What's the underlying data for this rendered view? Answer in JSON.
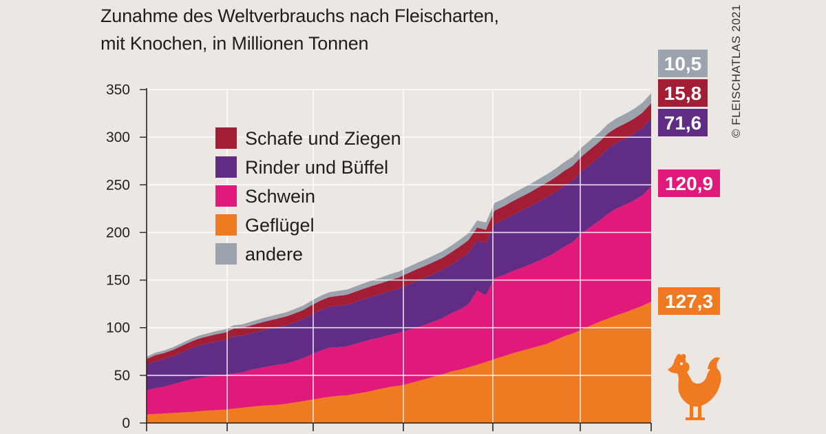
{
  "title_line1": "Zunahme des Weltverbrauchs nach Fleischarten,",
  "title_line2": "mit Knochen, in Millionen Tonnen",
  "credit": "© FLEISCHATLAS 2021",
  "icon": "chicken-icon",
  "chart_data": {
    "type": "area",
    "stacked": true,
    "ylim": [
      0,
      350
    ],
    "yticks": [
      0,
      50,
      100,
      150,
      200,
      250,
      300,
      350
    ],
    "grid": true,
    "legend_position": "top-left",
    "x": [
      0,
      1,
      2,
      3,
      4,
      5,
      6,
      7,
      8,
      9,
      10,
      11,
      12,
      13,
      14,
      15,
      16,
      17,
      18,
      19,
      20,
      21,
      22,
      23,
      24,
      25,
      26,
      27,
      28,
      29,
      30,
      31,
      32,
      33,
      34,
      35,
      36,
      37,
      38,
      39,
      40,
      41,
      42,
      43,
      44,
      45,
      46,
      47,
      48,
      49,
      50,
      51,
      52,
      53,
      54,
      55,
      56,
      57,
      58
    ],
    "series": [
      {
        "name": "Geflügel",
        "color": "#f07a22",
        "values": [
          9,
          9.5,
          10,
          10.5,
          11,
          11.5,
          12.3,
          13,
          13.5,
          14,
          15,
          16,
          17,
          18,
          18.5,
          19,
          20,
          21.5,
          23,
          24.5,
          26,
          27.5,
          28.5,
          29,
          30.5,
          32,
          34,
          36,
          38,
          39,
          41,
          43.5,
          46,
          48.5,
          51,
          54,
          56,
          58.5,
          61,
          64,
          67,
          70,
          73,
          75.5,
          78,
          80.5,
          83,
          87,
          91,
          94,
          98,
          102,
          106,
          109.5,
          113,
          116,
          119.5,
          123,
          127.3
        ]
      },
      {
        "name": "Schwein",
        "color": "#e0197b",
        "values": [
          25,
          27,
          28,
          30,
          32,
          34,
          35,
          35.5,
          36,
          36.5,
          37,
          37,
          39,
          39.5,
          41,
          42,
          42,
          43.5,
          45,
          47.5,
          50,
          51.5,
          51,
          51.5,
          52.5,
          53.5,
          54,
          54,
          54.5,
          55.5,
          56.5,
          56.5,
          57,
          58,
          59,
          61,
          63,
          66,
          78,
          70,
          85,
          85,
          86,
          87,
          88,
          89.5,
          91,
          92,
          94,
          96,
          101,
          103.5,
          106,
          110,
          112,
          113,
          114,
          116,
          120.9
        ]
      },
      {
        "name": "Rinder und Büffel",
        "color": "#612d84",
        "values": [
          27,
          28.5,
          29,
          29.5,
          31,
          32.5,
          34,
          35,
          36,
          36.5,
          39,
          38.5,
          38,
          39,
          39,
          39.5,
          40.5,
          40.5,
          41,
          42,
          42.5,
          43,
          43.5,
          43.5,
          44,
          44.5,
          45,
          45.5,
          46,
          46.5,
          47.5,
          49,
          49.5,
          50,
          50.5,
          51,
          53,
          54,
          52.5,
          55,
          57,
          58,
          59,
          60,
          61,
          62,
          63,
          63.5,
          64,
          64.5,
          65,
          66,
          67,
          68.5,
          69,
          69.5,
          70,
          71,
          71.6
        ]
      },
      {
        "name": "Schafe und Ziegen",
        "color": "#a31d34",
        "values": [
          6,
          6.2,
          6.4,
          6.6,
          6.8,
          7,
          7.2,
          7.4,
          7.6,
          7.8,
          8,
          8.2,
          8.4,
          8.6,
          8.8,
          9,
          9.2,
          9.4,
          9.6,
          9.8,
          10,
          10.2,
          10.4,
          10.6,
          10.8,
          11,
          11.2,
          11.4,
          11.6,
          11.8,
          12,
          12.2,
          12.4,
          12.6,
          12.8,
          13,
          13.2,
          13.4,
          13.6,
          13.8,
          14,
          14.2,
          14.4,
          14.6,
          14.8,
          15,
          15.2,
          15.4,
          15.6,
          15.7,
          15.7,
          15.8,
          15.8,
          15.8,
          15.8,
          15.8,
          15.8,
          15.8,
          15.8
        ]
      },
      {
        "name": "andere",
        "color": "#9ba3ad",
        "values": [
          2.5,
          2.6,
          2.7,
          2.8,
          2.9,
          3,
          3.1,
          3.2,
          3.4,
          3.5,
          3.6,
          3.8,
          3.9,
          4,
          4.2,
          4.3,
          4.4,
          4.6,
          4.7,
          4.8,
          5,
          5.1,
          5.3,
          5.4,
          5.5,
          5.7,
          5.8,
          6,
          6.1,
          6.2,
          6.4,
          6.5,
          6.6,
          6.8,
          6.9,
          7,
          7.2,
          7.3,
          7.5,
          7.6,
          7.8,
          8,
          8.1,
          8.3,
          8.5,
          8.6,
          8.8,
          9,
          9.1,
          9.3,
          9.4,
          9.6,
          9.7,
          9.8,
          10,
          10.1,
          10.2,
          10.4,
          10.5
        ]
      }
    ],
    "end_labels": [
      {
        "series": "andere",
        "text": "10,5",
        "color": "#9ba3ad"
      },
      {
        "series": "Schafe und Ziegen",
        "text": "15,8",
        "color": "#a31d34"
      },
      {
        "series": "Rinder und Büffel",
        "text": "71,6",
        "color": "#612d84"
      },
      {
        "series": "Schwein",
        "text": "120,9",
        "color": "#e0197b"
      },
      {
        "series": "Geflügel",
        "text": "127,3",
        "color": "#f07a22"
      }
    ],
    "legend_order": [
      "Schafe und Ziegen",
      "Rinder und Büffel",
      "Schwein",
      "Geflügel",
      "andere"
    ]
  }
}
